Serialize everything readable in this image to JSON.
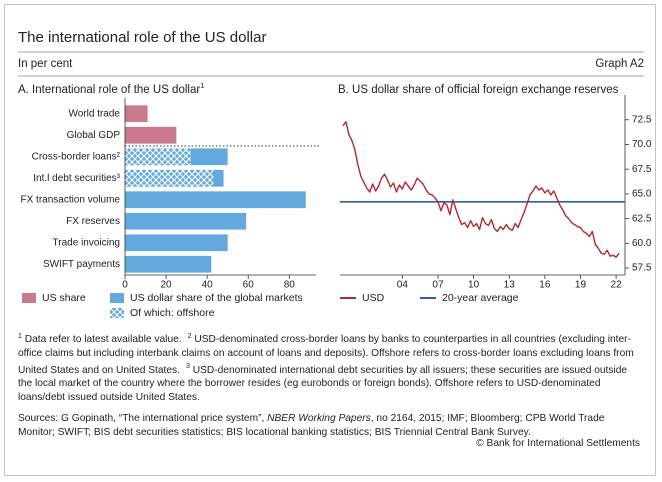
{
  "header": {
    "title": "The international role of the US dollar",
    "subtitle": "In per cent",
    "graph_id": "Graph A2"
  },
  "chart_data": [
    {
      "type": "bar",
      "orientation": "horizontal",
      "title": "A. International role of the US dollar",
      "title_footnote": "1",
      "categories": [
        "World trade",
        "Global GDP",
        "Cross-border loans²",
        "Int.l debt securities³",
        "FX transaction volume",
        "FX reserves",
        "Trade invoicing",
        "SWIFT payments"
      ],
      "series": [
        {
          "name": "US share",
          "color": "#c97b8c",
          "values": [
            11,
            25,
            null,
            null,
            null,
            null,
            null,
            null
          ]
        },
        {
          "name": "US dollar share of the global markets",
          "color": "#63a9de",
          "values": [
            null,
            null,
            50,
            48,
            88,
            59,
            50,
            42
          ]
        },
        {
          "name": "Of which: offshore",
          "color": "#63a9de",
          "hatch": true,
          "values": [
            null,
            null,
            32,
            43,
            null,
            null,
            null,
            null
          ]
        }
      ],
      "xlim": [
        0,
        93
      ],
      "xticks": [
        0,
        20,
        40,
        60,
        80
      ]
    },
    {
      "type": "line",
      "title": "B. US dollar share of official foreign exchange reserves",
      "x": [
        1999,
        1999.25,
        1999.5,
        1999.75,
        2000,
        2000.25,
        2000.5,
        2000.75,
        2001,
        2001.25,
        2001.5,
        2001.75,
        2002,
        2002.25,
        2002.5,
        2002.75,
        2003,
        2003.25,
        2003.5,
        2003.75,
        2004,
        2004.25,
        2004.5,
        2004.75,
        2005,
        2005.25,
        2005.5,
        2005.75,
        2006,
        2006.25,
        2006.5,
        2006.75,
        2007,
        2007.25,
        2007.5,
        2007.75,
        2008,
        2008.25,
        2008.5,
        2008.75,
        2009,
        2009.25,
        2009.5,
        2009.75,
        2010,
        2010.25,
        2010.5,
        2010.75,
        2011,
        2011.25,
        2011.5,
        2011.75,
        2012,
        2012.25,
        2012.5,
        2012.75,
        2013,
        2013.25,
        2013.5,
        2013.75,
        2014,
        2014.25,
        2014.5,
        2014.75,
        2015,
        2015.25,
        2015.5,
        2015.75,
        2016,
        2016.25,
        2016.5,
        2016.75,
        2017,
        2017.25,
        2017.5,
        2017.75,
        2018,
        2018.25,
        2018.5,
        2018.75,
        2019,
        2019.25,
        2019.5,
        2019.75,
        2020,
        2020.25,
        2020.5,
        2020.75,
        2021,
        2021.25,
        2021.5,
        2021.75,
        2022,
        2022.25
      ],
      "series": [
        {
          "name": "USD",
          "color": "#b2282f",
          "values": [
            71.9,
            72.3,
            71.0,
            70.4,
            69.5,
            68.0,
            66.8,
            66.2,
            65.6,
            65.2,
            66.0,
            65.3,
            65.8,
            66.6,
            67.0,
            66.4,
            65.7,
            66.1,
            65.2,
            65.9,
            65.5,
            66.2,
            65.8,
            65.4,
            65.9,
            66.6,
            66.3,
            66.0,
            65.4,
            65.0,
            64.9,
            64.6,
            64.2,
            63.3,
            64.1,
            63.9,
            62.9,
            64.4,
            63.5,
            62.6,
            61.9,
            62.1,
            61.6,
            62.3,
            61.7,
            62.0,
            61.4,
            62.6,
            62.0,
            61.8,
            62.4,
            61.5,
            61.2,
            61.7,
            61.4,
            61.9,
            61.5,
            61.3,
            62.0,
            61.6,
            62.4,
            63.1,
            64.0,
            64.9,
            65.3,
            65.8,
            65.4,
            65.6,
            65.1,
            65.4,
            64.9,
            65.3,
            64.6,
            63.9,
            63.4,
            62.8,
            62.5,
            62.1,
            61.9,
            61.7,
            61.6,
            61.2,
            61.0,
            60.7,
            61.2,
            59.9,
            59.5,
            59.0,
            58.9,
            59.3,
            58.7,
            58.8,
            58.6,
            59.0
          ]
        }
      ],
      "reference": {
        "name": "20-year average",
        "value": 64.2,
        "color": "#2a5ea8"
      },
      "xlim": [
        1998.75,
        2022.75
      ],
      "xticks": [
        {
          "value": 2004,
          "label": "04"
        },
        {
          "value": 2007,
          "label": "07"
        },
        {
          "value": 2010,
          "label": "10"
        },
        {
          "value": 2013,
          "label": "13"
        },
        {
          "value": 2016,
          "label": "16"
        },
        {
          "value": 2019,
          "label": "19"
        },
        {
          "value": 2022,
          "label": "22"
        }
      ],
      "ylim": [
        56.8,
        74.5
      ],
      "yticks": [
        57.5,
        {
          "value": 60,
          "label": "60.0"
        },
        62.5,
        {
          "value": 65,
          "label": "65.0"
        },
        67.5,
        {
          "value": 70,
          "label": "70.0"
        },
        72.5
      ],
      "y_axis_side": "right"
    }
  ],
  "footnotes": [
    {
      "marker": "1",
      "text": "Data refer to latest available value."
    },
    {
      "marker": "2",
      "text": "USD-denominated cross-border loans by banks to counterparties in all countries (excluding inter-office claims but including interbank claims on account of loans and deposits). Offshore refers to cross-border loans excluding loans from United States and on United States."
    },
    {
      "marker": "3",
      "text": "USD-denominated international debt securities by all issuers; these securities are issued outside the local market of the country where the borrower resides (eg eurobonds or foreign bonds). Offshore refers to USD-denominated loans/debt issued outside United States."
    }
  ],
  "sources": [
    "Sources: G Gopinath, “The international price system”, ",
    "NBER Working Papers",
    ", no 2164, 2015; IMF; Bloomberg; CPB World Trade Monitor; SWIFT; BIS debt securities statistics; BIS locational banking statistics; BIS Triennial Central Bank Survey."
  ],
  "copyright": "© Bank for International Settlements"
}
